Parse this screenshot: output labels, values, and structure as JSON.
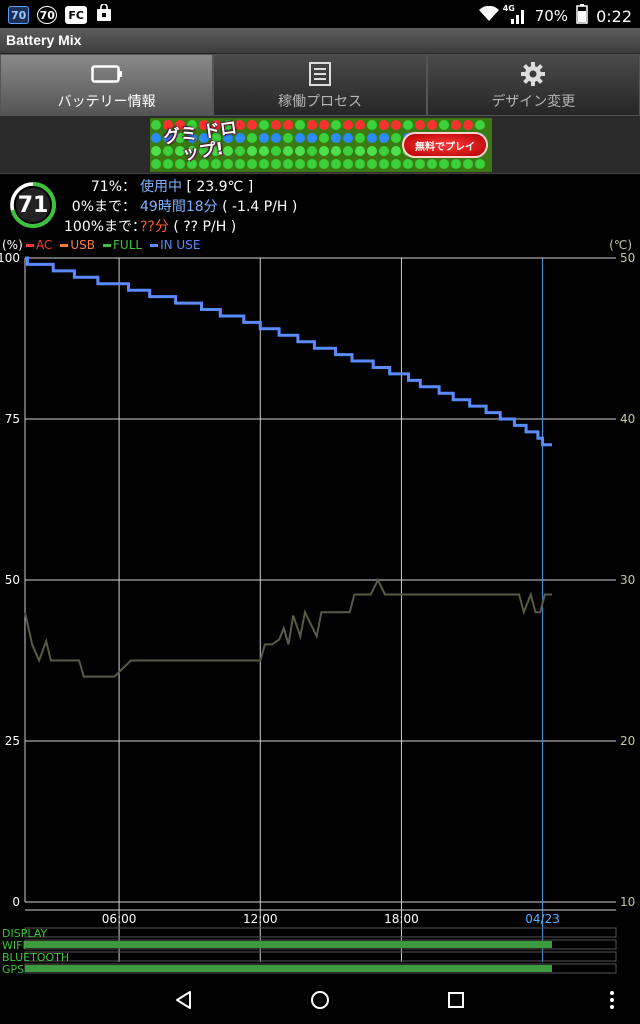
{
  "status_bar": {
    "left_icons": [
      {
        "name": "notification-70-icon",
        "text": "70",
        "style": "blue"
      },
      {
        "name": "battery-mix-notification-icon",
        "text": "70",
        "style": "circ"
      },
      {
        "name": "fc-app-icon",
        "text": "FC",
        "style": "box"
      },
      {
        "name": "shopping-bag-icon",
        "text": "",
        "style": "box"
      }
    ],
    "network": "4G",
    "battery": "70%",
    "time": "0:22"
  },
  "app": {
    "title": "Battery Mix"
  },
  "tabs": [
    {
      "label": "バッテリー情報",
      "icon": "battery-icon",
      "active": true
    },
    {
      "label": "稼働プロセス",
      "icon": "list-icon",
      "active": false
    },
    {
      "label": "デザイン変更",
      "icon": "gear-icon",
      "active": false
    }
  ],
  "banner": {
    "title": "グミ ドロップ!",
    "button": "無料でプレイ"
  },
  "battery": {
    "level": 71,
    "level_color": "#3ec23e",
    "row1": {
      "key": "71%：",
      "status": "使用中",
      "temp": "[ 23.9℃ ]"
    },
    "row2": {
      "key": "0%まで：",
      "remaining": "49時間18分",
      "rate": "( -1.4 P/H )"
    },
    "row3": {
      "key": "100%まで：",
      "remaining": "??分",
      "rate": "( ?? P/H )"
    }
  },
  "legend": {
    "unit_left": "(%)",
    "unit_right": "(℃)",
    "items": [
      {
        "label": "AC",
        "color": "#ff3a3a"
      },
      {
        "label": "USB",
        "color": "#ff7a3a"
      },
      {
        "label": "FULL",
        "color": "#3ec23e"
      },
      {
        "label": "IN USE",
        "color": "#5a8cff"
      }
    ]
  },
  "chart_data": {
    "type": "line",
    "x_labels": [
      "06:00",
      "12:00",
      "18:00",
      "04/23"
    ],
    "x_label_colors": [
      "#ffffff",
      "#ffffff",
      "#ffffff",
      "#5aaeff"
    ],
    "x_range_hours": [
      2.0,
      24.4
    ],
    "y_left": {
      "ticks": [
        0,
        25,
        50,
        75,
        100
      ],
      "ylim": [
        0,
        100
      ]
    },
    "y_right": {
      "ticks": [
        10,
        20,
        30,
        40,
        50
      ],
      "ylim": [
        10,
        50
      ]
    },
    "grid": true,
    "series": [
      {
        "name": "IN USE",
        "axis": "left",
        "color": "#5a8cff",
        "step": true,
        "points": [
          [
            2.0,
            100
          ],
          [
            2.1,
            99
          ],
          [
            3.2,
            98
          ],
          [
            4.1,
            97
          ],
          [
            5.1,
            96
          ],
          [
            6.4,
            95
          ],
          [
            7.3,
            94
          ],
          [
            8.4,
            93
          ],
          [
            9.5,
            92
          ],
          [
            10.3,
            91
          ],
          [
            11.3,
            90
          ],
          [
            12.0,
            89
          ],
          [
            12.8,
            88
          ],
          [
            13.6,
            87
          ],
          [
            14.3,
            86
          ],
          [
            15.2,
            85
          ],
          [
            15.9,
            84
          ],
          [
            16.8,
            83
          ],
          [
            17.5,
            82
          ],
          [
            18.3,
            81
          ],
          [
            18.8,
            80
          ],
          [
            19.6,
            79
          ],
          [
            20.2,
            78
          ],
          [
            20.9,
            77
          ],
          [
            21.6,
            76
          ],
          [
            22.2,
            75
          ],
          [
            22.8,
            74
          ],
          [
            23.3,
            73
          ],
          [
            23.8,
            72
          ],
          [
            24.0,
            71
          ],
          [
            24.4,
            71
          ]
        ]
      },
      {
        "name": "temperature",
        "axis": "right",
        "color": "#5a5a48",
        "step": false,
        "points": [
          [
            2.0,
            28
          ],
          [
            2.3,
            26
          ],
          [
            2.6,
            25
          ],
          [
            2.9,
            26.2
          ],
          [
            3.1,
            25
          ],
          [
            4.3,
            25
          ],
          [
            4.5,
            24
          ],
          [
            5.8,
            24
          ],
          [
            6.5,
            25
          ],
          [
            12.0,
            25
          ],
          [
            12.2,
            26
          ],
          [
            12.5,
            26
          ],
          [
            12.8,
            26.3
          ],
          [
            13.0,
            27
          ],
          [
            13.2,
            26
          ],
          [
            13.4,
            27.8
          ],
          [
            13.7,
            26.5
          ],
          [
            13.9,
            28
          ],
          [
            14.4,
            26.5
          ],
          [
            14.6,
            28
          ],
          [
            15.8,
            28
          ],
          [
            16.0,
            29.1
          ],
          [
            16.7,
            29.1
          ],
          [
            17.0,
            30
          ],
          [
            17.3,
            29.1
          ],
          [
            23.0,
            29.1
          ],
          [
            23.2,
            28
          ],
          [
            23.5,
            29.1
          ],
          [
            23.7,
            28
          ],
          [
            23.9,
            28
          ],
          [
            24.1,
            29.1
          ],
          [
            24.4,
            29.1
          ]
        ]
      }
    ]
  },
  "usage_bars": {
    "rows": [
      {
        "label": "DISPLAY",
        "fill": 0.0
      },
      {
        "label": "WIFI",
        "fill": 0.95
      },
      {
        "label": "BLUETOOTH",
        "fill": 0.0
      },
      {
        "label": "GPS",
        "fill": 0.95
      }
    ],
    "label_color": "#3ec23e",
    "fill_color": "#3e9a3e"
  },
  "nav": {
    "back": "back-icon",
    "home": "home-icon",
    "recents": "recents-icon",
    "menu": "overflow-menu-icon"
  }
}
